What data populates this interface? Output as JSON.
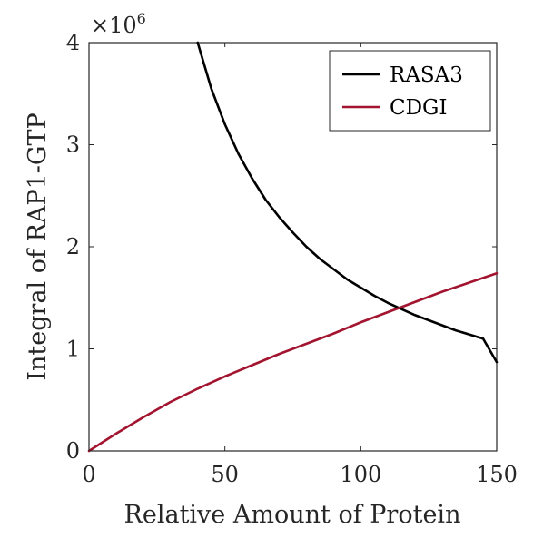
{
  "chart_data": {
    "type": "line",
    "title": "",
    "xlabel": "Relative Amount of Protein",
    "ylabel": "Integral of RAP1-GTP",
    "xlim": [
      0,
      150
    ],
    "ylim": [
      0,
      4
    ],
    "y_multiplier": "×10",
    "y_multiplier_exponent": "6",
    "x_ticks": [
      "0",
      "50",
      "100",
      "150"
    ],
    "y_ticks": [
      "0",
      "1",
      "2",
      "3",
      "4"
    ],
    "grid": false,
    "legend_position": "top-right",
    "series": [
      {
        "name": "RASA3",
        "color": "#000000",
        "x": [
          40,
          45,
          50,
          55,
          60,
          65,
          70,
          75,
          80,
          85,
          90,
          95,
          100,
          105,
          110,
          115,
          120,
          125,
          130,
          135,
          140,
          145,
          150
        ],
        "y": [
          4.0,
          3.55,
          3.2,
          2.91,
          2.67,
          2.46,
          2.29,
          2.14,
          2.0,
          1.88,
          1.78,
          1.68,
          1.6,
          1.52,
          1.45,
          1.39,
          1.33,
          1.28,
          1.23,
          1.18,
          1.14,
          1.1,
          0.87
        ]
      },
      {
        "name": "CDGI",
        "color": "#a2142f",
        "x": [
          0,
          10,
          20,
          30,
          40,
          50,
          60,
          70,
          80,
          90,
          100,
          110,
          120,
          130,
          140,
          150
        ],
        "y": [
          0.0,
          0.17,
          0.33,
          0.48,
          0.61,
          0.73,
          0.84,
          0.95,
          1.05,
          1.15,
          1.26,
          1.36,
          1.46,
          1.56,
          1.65,
          1.74
        ]
      }
    ]
  }
}
